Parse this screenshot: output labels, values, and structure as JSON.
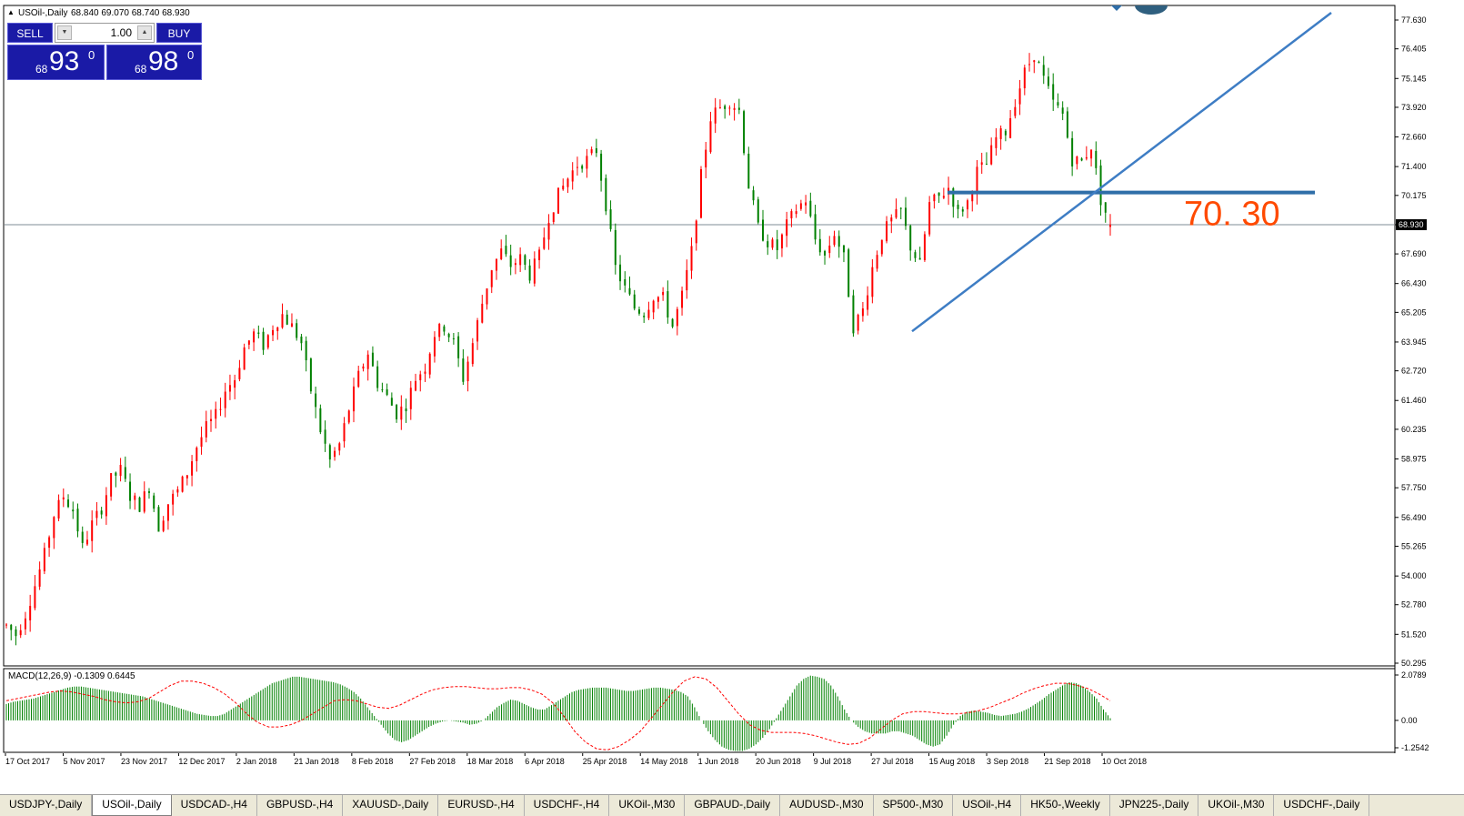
{
  "chart_header": {
    "title": "USOil-,Daily",
    "ohlc": "68.840 69.070 68.740 68.930"
  },
  "trade_panel": {
    "sell_label": "SELL",
    "buy_label": "BUY",
    "lot_value": "1.00",
    "sell_price_small": "68",
    "sell_price_big": "93",
    "sell_price_sup": "0",
    "buy_price_small": "68",
    "buy_price_big": "98",
    "buy_price_sup": "0"
  },
  "chart_data": [
    {
      "type": "candlestick",
      "symbol": "USOil-",
      "timeframe": "Daily",
      "y_axis_ticks": [
        "77.630",
        "76.405",
        "75.145",
        "73.920",
        "72.660",
        "71.400",
        "70.175",
        "68.930",
        "67.690",
        "66.430",
        "65.205",
        "63.945",
        "62.720",
        "61.460",
        "60.235",
        "58.975",
        "57.750",
        "56.490",
        "55.265",
        "54.000",
        "52.780",
        "51.520",
        "50.295"
      ],
      "ylim": [
        50.295,
        77.63
      ],
      "x_axis_labels": [
        "17 Oct 2017",
        "5 Nov 2017",
        "23 Nov 2017",
        "12 Dec 2017",
        "2 Jan 2018",
        "21 Jan 2018",
        "8 Feb 2018",
        "27 Feb 2018",
        "18 Mar 2018",
        "6 Apr 2018",
        "25 Apr 2018",
        "14 May 2018",
        "1 Jun 2018",
        "20 Jun 2018",
        "9 Jul 2018",
        "27 Jul 2018",
        "15 Aug 2018",
        "3 Sep 2018",
        "21 Sep 2018",
        "10 Oct 2018"
      ],
      "current_price": "68.930",
      "horizontal_level": 70.3,
      "level_annotation": "70. 30",
      "trendline": {
        "from_price": 64.4,
        "to_price": 77.63
      },
      "price_path": [
        51.9,
        51.5,
        52.4,
        53.6,
        54.9,
        56.6,
        57.4,
        56.8,
        55.2,
        56.2,
        56.9,
        58.1,
        58.5,
        57.4,
        57.0,
        57.8,
        56.1,
        57.1,
        57.6,
        58.4,
        59.5,
        60.3,
        60.8,
        61.9,
        62.4,
        63.7,
        64.3,
        63.8,
        64.6,
        65.1,
        64.6,
        63.9,
        61.9,
        60.2,
        58.9,
        59.6,
        61.1,
        62.5,
        63.5,
        62.2,
        61.6,
        60.9,
        61.3,
        62.4,
        62.9,
        64.3,
        64.6,
        63.9,
        62.4,
        63.9,
        65.6,
        67.1,
        67.8,
        67.2,
        67.5,
        66.8,
        67.6,
        69.3,
        70.2,
        70.9,
        71.5,
        71.7,
        72.1,
        69.8,
        67.1,
        66.2,
        65.4,
        65.2,
        65.9,
        65.8,
        64.6,
        65.9,
        67.8,
        71.0,
        73.5,
        73.9,
        74.2,
        73.8,
        70.6,
        68.8,
        68.2,
        67.9,
        68.9,
        69.6,
        70.0,
        68.3,
        67.6,
        68.6,
        67.5,
        64.6,
        65.3,
        67.1,
        68.5,
        69.1,
        69.5,
        68.0,
        67.2,
        69.8,
        70.1,
        70.5,
        69.4,
        69.9,
        71.2,
        71.5,
        72.6,
        72.9,
        74.2,
        75.4,
        76.2,
        75.1,
        74.1,
        73.6,
        71.7,
        71.6,
        72.3,
        70.0,
        68.93
      ],
      "series": [
        {
          "name": "MACD(12,26,9)",
          "value": -0.1309
        },
        {
          "name": "Signal",
          "value": 0.6445
        }
      ],
      "macd_y_ticks": [
        "2.0789",
        "0.00",
        "-1.2542"
      ],
      "macd_hist": [
        0.75,
        0.85,
        0.9,
        0.95,
        1.0,
        1.1,
        1.2,
        1.3,
        1.4,
        1.5,
        1.55,
        1.55,
        1.5,
        1.45,
        1.4,
        1.35,
        1.3,
        1.25,
        1.2,
        1.15,
        1.1,
        1.0,
        0.9,
        0.8,
        0.7,
        0.6,
        0.5,
        0.4,
        0.3,
        0.25,
        0.2,
        0.2,
        0.3,
        0.5,
        0.7,
        0.9,
        1.1,
        1.3,
        1.5,
        1.7,
        1.8,
        1.9,
        2.0,
        2.0,
        1.95,
        1.9,
        1.85,
        1.8,
        1.75,
        1.65,
        1.5,
        1.3,
        1.0,
        0.6,
        0.2,
        -0.2,
        -0.6,
        -0.9,
        -1.0,
        -0.9,
        -0.7,
        -0.5,
        -0.3,
        -0.15,
        -0.05,
        0.0,
        -0.05,
        -0.1,
        -0.2,
        -0.15,
        0.0,
        0.3,
        0.6,
        0.8,
        0.95,
        0.9,
        0.75,
        0.6,
        0.5,
        0.5,
        0.7,
        0.9,
        1.1,
        1.3,
        1.4,
        1.45,
        1.5,
        1.5,
        1.5,
        1.45,
        1.4,
        1.35,
        1.35,
        1.4,
        1.45,
        1.5,
        1.5,
        1.45,
        1.4,
        1.3,
        1.1,
        0.6,
        0.0,
        -0.5,
        -0.9,
        -1.2,
        -1.35,
        -1.4,
        -1.4,
        -1.3,
        -1.1,
        -0.8,
        -0.4,
        0.1,
        0.6,
        1.1,
        1.6,
        1.9,
        2.05,
        2.0,
        1.9,
        1.6,
        1.1,
        0.5,
        0.0,
        -0.3,
        -0.5,
        -0.6,
        -0.6,
        -0.6,
        -0.5,
        -0.5,
        -0.6,
        -0.7,
        -0.9,
        -1.1,
        -1.2,
        -1.1,
        -0.7,
        -0.2,
        0.2,
        0.4,
        0.45,
        0.4,
        0.35,
        0.25,
        0.2,
        0.25,
        0.3,
        0.4,
        0.55,
        0.75,
        0.95,
        1.2,
        1.4,
        1.6,
        1.75,
        1.7,
        1.55,
        1.3,
        1.0,
        0.5,
        0.1
      ],
      "macd_signal": [
        0.9,
        1.0,
        1.1,
        1.2,
        1.3,
        1.35,
        1.3,
        1.2,
        1.1,
        0.95,
        0.85,
        0.8,
        0.85,
        1.0,
        1.3,
        1.6,
        1.8,
        1.8,
        1.7,
        1.5,
        1.2,
        0.8,
        0.3,
        -0.1,
        -0.3,
        -0.3,
        -0.2,
        0.0,
        0.3,
        0.6,
        0.9,
        0.95,
        0.9,
        0.75,
        0.6,
        0.55,
        0.7,
        0.95,
        1.2,
        1.4,
        1.5,
        1.55,
        1.55,
        1.5,
        1.45,
        1.45,
        1.5,
        1.5,
        1.4,
        1.2,
        0.8,
        0.2,
        -0.5,
        -1.0,
        -1.3,
        -1.35,
        -1.2,
        -0.9,
        -0.5,
        0.1,
        0.7,
        1.3,
        1.8,
        2.0,
        1.9,
        1.5,
        0.9,
        0.3,
        -0.2,
        -0.45,
        -0.55,
        -0.55,
        -0.55,
        -0.6,
        -0.7,
        -0.85,
        -1.0,
        -1.1,
        -1.05,
        -0.8,
        -0.4,
        0.0,
        0.3,
        0.4,
        0.4,
        0.35,
        0.3,
        0.3,
        0.35,
        0.45,
        0.6,
        0.8,
        1.0,
        1.25,
        1.45,
        1.6,
        1.7,
        1.7,
        1.6,
        1.45,
        1.2,
        0.9
      ]
    }
  ],
  "tabs": [
    "USDJPY-,Daily",
    "USOil-,Daily",
    "USDCAD-,H4",
    "GBPUSD-,H4",
    "XAUUSD-,Daily",
    "EURUSD-,H4",
    "USDCHF-,H4",
    "UKOil-,M30",
    "GBPAUD-,Daily",
    "AUDUSD-,M30",
    "SP500-,M30",
    "USOil-,H4",
    "HK50-,Weekly",
    "JPN225-,Daily",
    "UKOil-,M30",
    "USDCHF-,Daily"
  ],
  "active_tab": 1,
  "colors": {
    "bull": "#ff0000",
    "bear": "#008000",
    "level_line": "#2f6ea8",
    "trendline": "#3e7dc4",
    "annotation": "#ff4a00",
    "macd_signal": "#ff0000",
    "panel_blue": "#1a1aa6"
  }
}
